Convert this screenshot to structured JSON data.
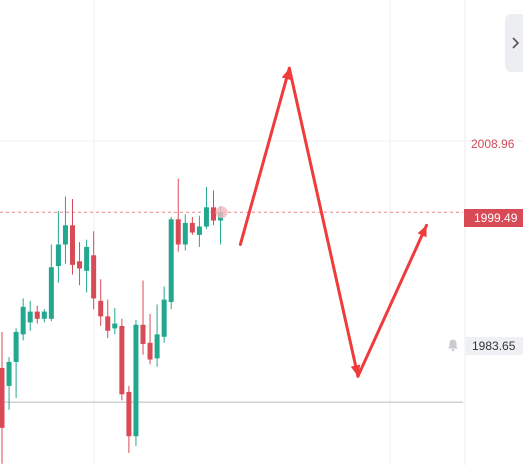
{
  "chart_data": {
    "type": "candlestick",
    "ylim": [
      1978.4,
      2017.2
    ],
    "candles": [
      {
        "o": 1986.5,
        "h": 1989.5,
        "l": 1978.5,
        "c": 1981.5
      },
      {
        "o": 1985.0,
        "h": 1987.4,
        "l": 1983.0,
        "c": 1987.0
      },
      {
        "o": 1987.0,
        "h": 1989.8,
        "l": 1984.0,
        "c": 1989.5
      },
      {
        "o": 1989.3,
        "h": 1992.3,
        "l": 1988.8,
        "c": 1991.6
      },
      {
        "o": 1990.3,
        "h": 1992.1,
        "l": 1989.6,
        "c": 1991.2
      },
      {
        "o": 1991.2,
        "h": 1991.7,
        "l": 1990.2,
        "c": 1990.6
      },
      {
        "o": 1990.6,
        "h": 1991.4,
        "l": 1990.3,
        "c": 1991.2
      },
      {
        "o": 1990.6,
        "h": 1996.8,
        "l": 1990.4,
        "c": 1994.9
      },
      {
        "o": 1995.0,
        "h": 1999.6,
        "l": 1993.6,
        "c": 1996.8
      },
      {
        "o": 1996.8,
        "h": 2000.8,
        "l": 1995.2,
        "c": 1998.4
      },
      {
        "o": 1998.4,
        "h": 2000.6,
        "l": 1994.3,
        "c": 1995.1
      },
      {
        "o": 1995.4,
        "h": 1997.0,
        "l": 1993.4,
        "c": 1994.8
      },
      {
        "o": 1994.6,
        "h": 1997.2,
        "l": 1992.8,
        "c": 1996.6
      },
      {
        "o": 1995.9,
        "h": 1997.9,
        "l": 1991.4,
        "c": 1992.3
      },
      {
        "o": 1992.1,
        "h": 1993.9,
        "l": 1990.0,
        "c": 1990.8
      },
      {
        "o": 1990.8,
        "h": 1992.2,
        "l": 1989.0,
        "c": 1989.6
      },
      {
        "o": 1989.8,
        "h": 1991.5,
        "l": 1989.3,
        "c": 1990.2
      },
      {
        "o": 1990.0,
        "h": 1990.6,
        "l": 1983.8,
        "c": 1984.3
      },
      {
        "o": 1984.5,
        "h": 1985.0,
        "l": 1979.4,
        "c": 1980.8
      },
      {
        "o": 1980.8,
        "h": 1990.5,
        "l": 1980.0,
        "c": 1990.1
      },
      {
        "o": 1990.1,
        "h": 1993.8,
        "l": 1987.6,
        "c": 1988.5
      },
      {
        "o": 1988.6,
        "h": 1991.0,
        "l": 1986.8,
        "c": 1987.2
      },
      {
        "o": 1987.3,
        "h": 1991.8,
        "l": 1986.6,
        "c": 1989.3
      },
      {
        "o": 1989.1,
        "h": 1993.3,
        "l": 1988.6,
        "c": 1992.2
      },
      {
        "o": 1992.0,
        "h": 1999.1,
        "l": 1991.4,
        "c": 1998.9
      },
      {
        "o": 1998.9,
        "h": 2002.3,
        "l": 1996.2,
        "c": 1996.8
      },
      {
        "o": 1996.8,
        "h": 1999.3,
        "l": 1996.3,
        "c": 1998.6
      },
      {
        "o": 1998.6,
        "h": 1999.1,
        "l": 1997.6,
        "c": 1997.8
      },
      {
        "o": 1997.6,
        "h": 1999.2,
        "l": 1996.6,
        "c": 1998.3
      },
      {
        "o": 1998.3,
        "h": 2001.6,
        "l": 1998.1,
        "c": 1999.9
      },
      {
        "o": 1999.9,
        "h": 2001.3,
        "l": 1998.4,
        "c": 1998.8
      },
      {
        "o": 1998.8,
        "h": 2000.0,
        "l": 1996.8,
        "c": 1999.49
      }
    ],
    "price_labels": {
      "upper": "2008.96",
      "last": "1999.49",
      "lower": "1983.65"
    },
    "forecast_path": [
      {
        "x": 1,
        "y": 1996.8
      },
      {
        "x": 6,
        "y": 2011.5
      },
      {
        "x": 13,
        "y": 1985.8
      },
      {
        "x": 20,
        "y": 1998.4
      }
    ],
    "colors": {
      "up": "#22a88f",
      "down": "#d94a57",
      "arrow": "#ef3b3b",
      "grid": "#ececec",
      "last_price_line": "#e8848d"
    }
  }
}
